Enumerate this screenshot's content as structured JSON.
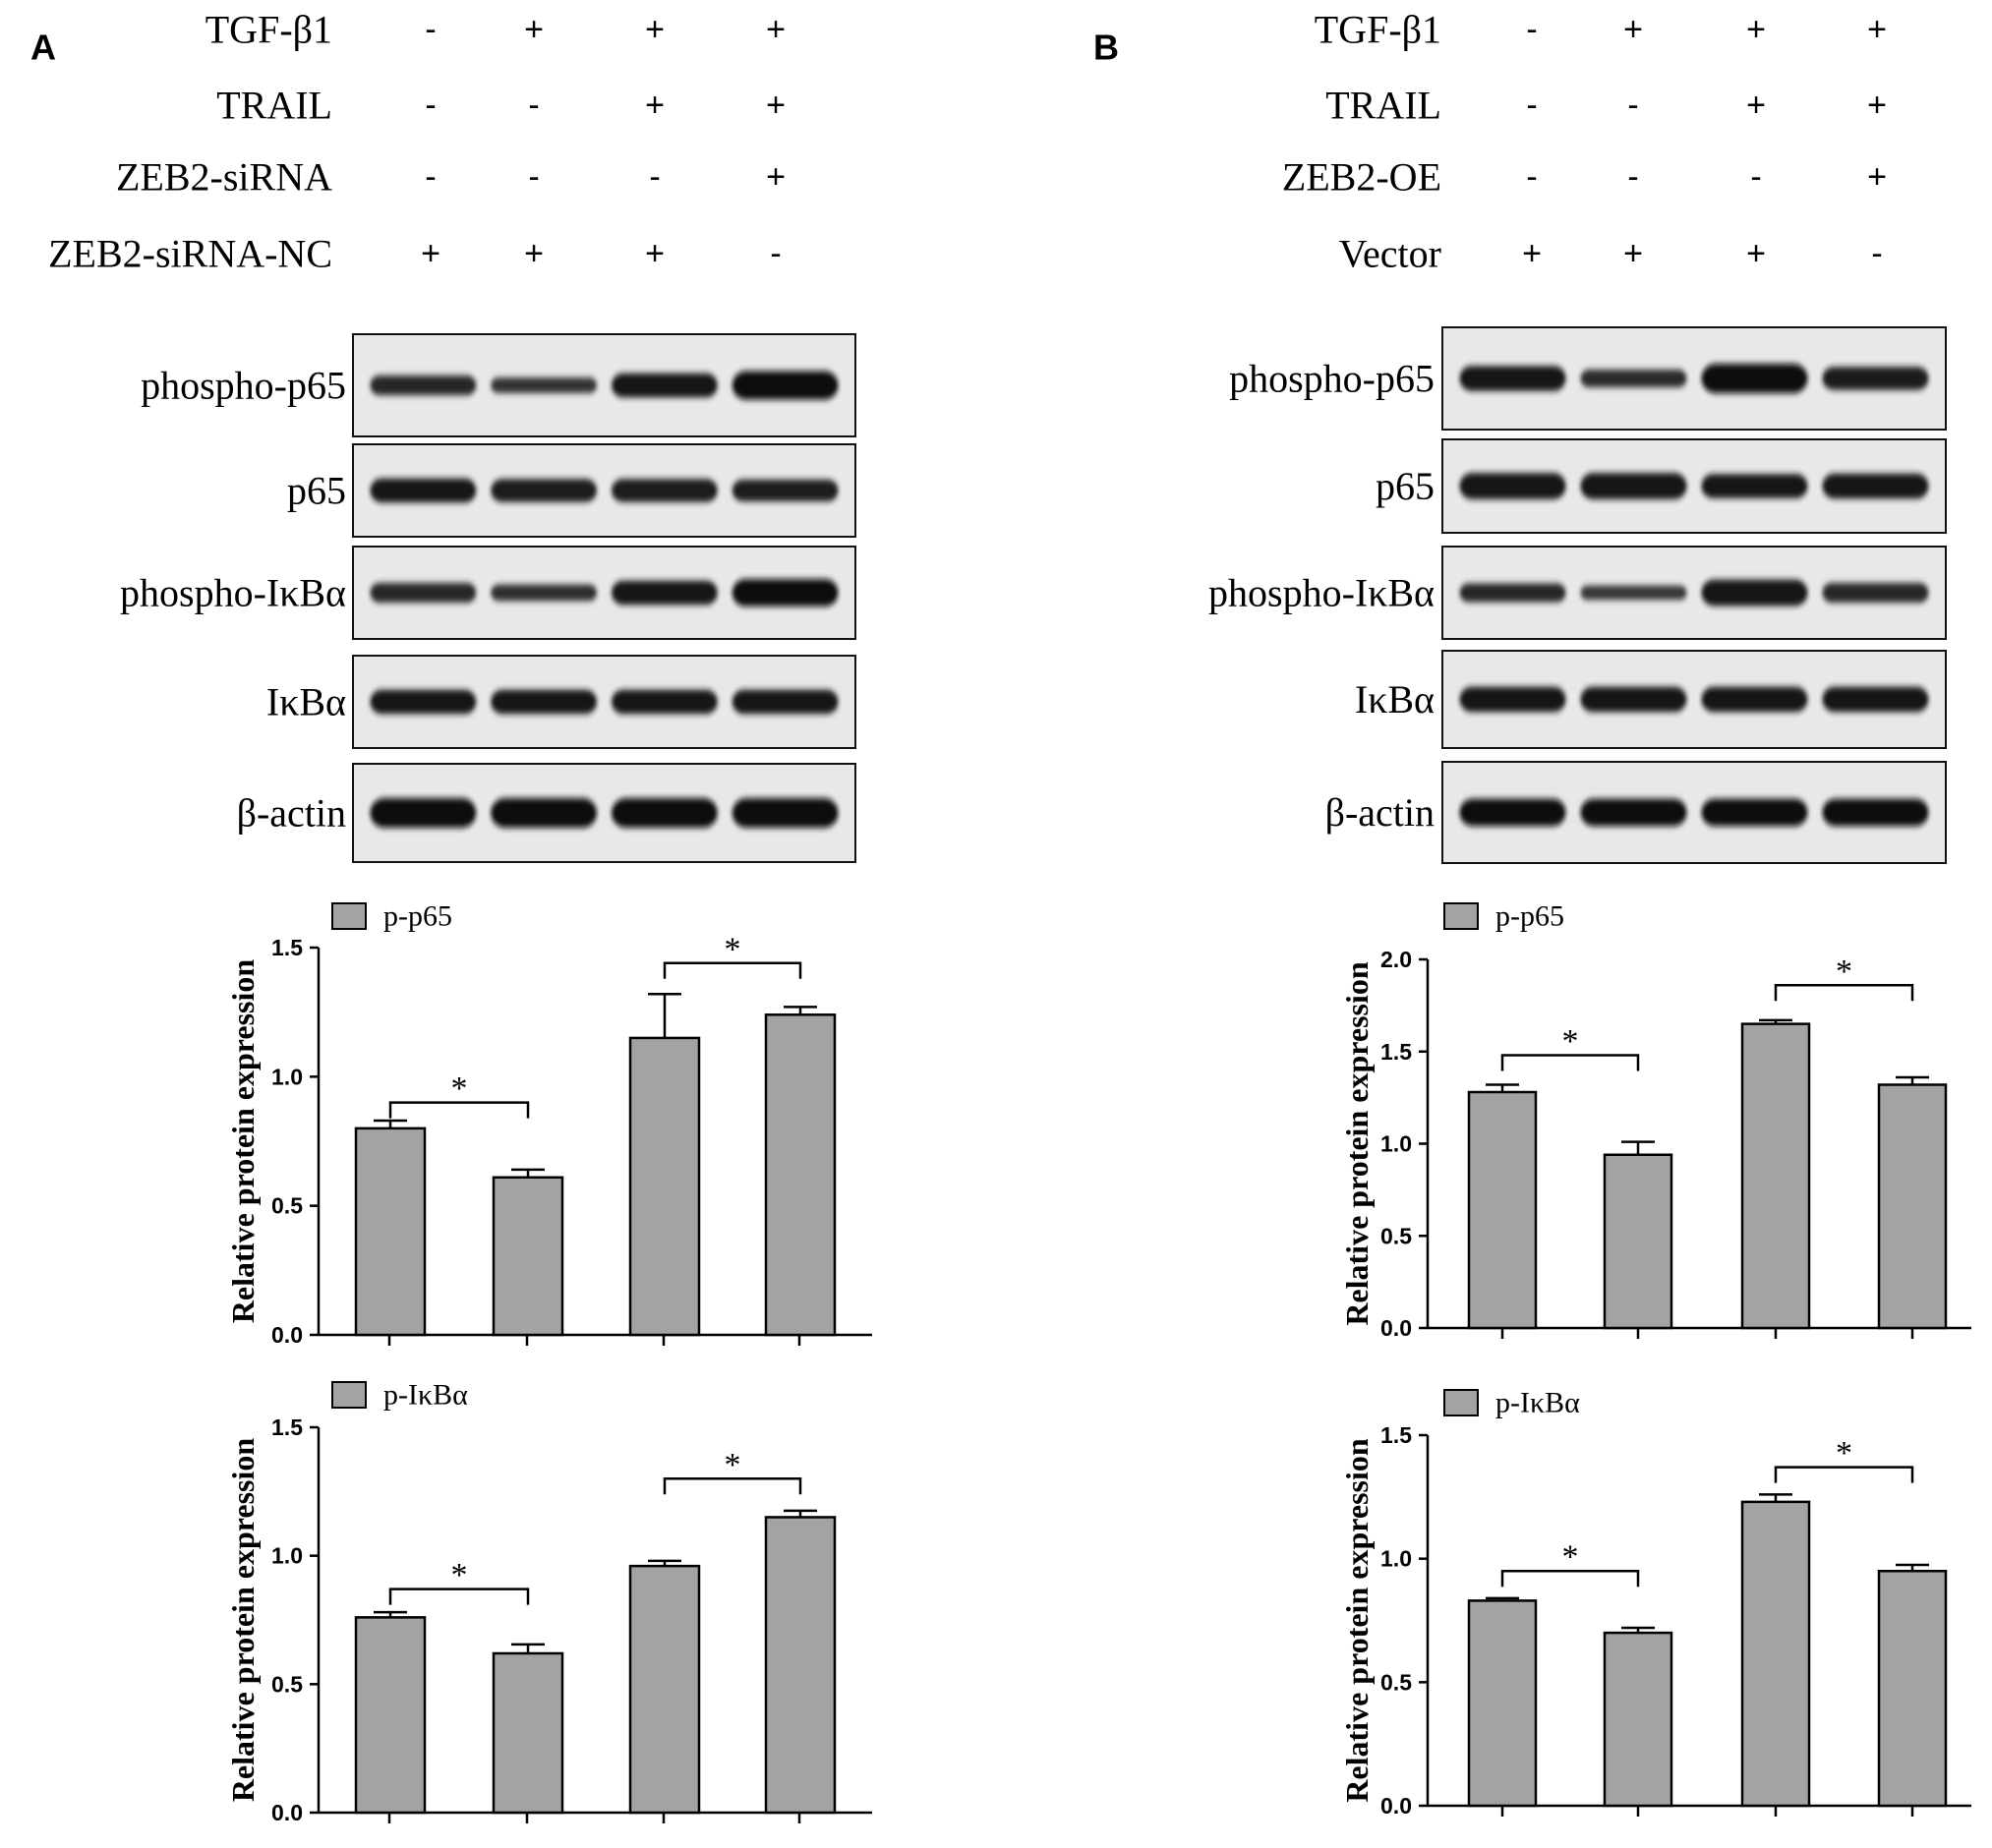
{
  "panels": [
    {
      "letter": "A",
      "treatments": [
        {
          "label": "TGF-β1",
          "signs": [
            "-",
            "+",
            "+",
            "+"
          ]
        },
        {
          "label": "TRAIL",
          "signs": [
            "-",
            "-",
            "+",
            "+"
          ]
        },
        {
          "label": "ZEB2-siRNA",
          "signs": [
            "-",
            "-",
            "-",
            "+"
          ]
        },
        {
          "label": "ZEB2-siRNA-NC",
          "signs": [
            "+",
            "+",
            "+",
            "-"
          ]
        }
      ],
      "blots": [
        {
          "label": "phospho-p65",
          "intensity": [
            0.55,
            0.35,
            0.75,
            0.95
          ]
        },
        {
          "label": "p65",
          "intensity": [
            0.75,
            0.7,
            0.7,
            0.65
          ]
        },
        {
          "label": "phospho-IκBα",
          "intensity": [
            0.55,
            0.4,
            0.75,
            0.9
          ]
        },
        {
          "label": "IκBα",
          "intensity": [
            0.75,
            0.75,
            0.75,
            0.75
          ]
        },
        {
          "label": "β-actin",
          "intensity": [
            1.0,
            1.0,
            1.0,
            1.0
          ]
        }
      ]
    },
    {
      "letter": "B",
      "treatments": [
        {
          "label": "TGF-β1",
          "signs": [
            "-",
            "+",
            "+",
            "+"
          ]
        },
        {
          "label": "TRAIL",
          "signs": [
            "-",
            "-",
            "+",
            "+"
          ]
        },
        {
          "label": "ZEB2-OE",
          "signs": [
            "-",
            "-",
            "-",
            "+"
          ]
        },
        {
          "label": "Vector",
          "signs": [
            "+",
            "+",
            "+",
            "-"
          ]
        }
      ],
      "blots": [
        {
          "label": "phospho-p65",
          "intensity": [
            0.8,
            0.45,
            1.0,
            0.7
          ]
        },
        {
          "label": "p65",
          "intensity": [
            0.85,
            0.85,
            0.75,
            0.8
          ]
        },
        {
          "label": "phospho-IκBα",
          "intensity": [
            0.5,
            0.3,
            0.85,
            0.55
          ]
        },
        {
          "label": "IκBα",
          "intensity": [
            0.8,
            0.8,
            0.8,
            0.8
          ]
        },
        {
          "label": "β-actin",
          "intensity": [
            0.9,
            0.9,
            0.9,
            0.9
          ]
        }
      ]
    }
  ],
  "chart_data": [
    {
      "type": "bar",
      "panel": "A",
      "legend": "p-p65",
      "legend_position": "top-left",
      "ylabel": "Relative protein expression",
      "ylim": [
        0,
        1.5
      ],
      "yticks": [
        "0.0",
        "0.5",
        "1.0",
        "1.5"
      ],
      "values": [
        0.8,
        0.61,
        1.15,
        1.24
      ],
      "errors": [
        0.03,
        0.03,
        0.17,
        0.03
      ],
      "significance": [
        {
          "groups": [
            0,
            1
          ],
          "label": "*",
          "y": 0.9
        },
        {
          "groups": [
            2,
            3
          ],
          "label": "*",
          "y": 1.44
        }
      ]
    },
    {
      "type": "bar",
      "panel": "A",
      "legend": "p-IκBα",
      "legend_position": "top-left",
      "ylabel": "Relative protein expression",
      "ylim": [
        0,
        1.5
      ],
      "yticks": [
        "0.0",
        "0.5",
        "1.0",
        "1.5"
      ],
      "values": [
        0.76,
        0.62,
        0.96,
        1.15
      ],
      "errors": [
        0.02,
        0.035,
        0.02,
        0.025
      ],
      "significance": [
        {
          "groups": [
            0,
            1
          ],
          "label": "*",
          "y": 0.87
        },
        {
          "groups": [
            2,
            3
          ],
          "label": "*",
          "y": 1.3
        }
      ]
    },
    {
      "type": "bar",
      "panel": "B",
      "legend": "p-p65",
      "legend_position": "top-left",
      "ylabel": "Relative protein expression",
      "ylim": [
        0,
        2.0
      ],
      "yticks": [
        "0.0",
        "0.5",
        "1.0",
        "1.5",
        "2.0"
      ],
      "values": [
        1.28,
        0.94,
        1.65,
        1.32
      ],
      "errors": [
        0.04,
        0.07,
        0.02,
        0.04
      ],
      "significance": [
        {
          "groups": [
            0,
            1
          ],
          "label": "*",
          "y": 1.48
        },
        {
          "groups": [
            2,
            3
          ],
          "label": "*",
          "y": 1.86
        }
      ]
    },
    {
      "type": "bar",
      "panel": "B",
      "legend": "p-IκBα",
      "legend_position": "top-left",
      "ylabel": "Relative protein expression",
      "ylim": [
        0,
        1.5
      ],
      "yticks": [
        "0.0",
        "0.5",
        "1.0",
        "1.5"
      ],
      "values": [
        0.83,
        0.7,
        1.23,
        0.95
      ],
      "errors": [
        0.01,
        0.02,
        0.03,
        0.025
      ],
      "significance": [
        {
          "groups": [
            0,
            1
          ],
          "label": "*",
          "y": 0.95
        },
        {
          "groups": [
            2,
            3
          ],
          "label": "*",
          "y": 1.37
        }
      ]
    }
  ],
  "colors": {
    "bar_fill": "#a3a3a3",
    "stroke": "#000000",
    "blot_bg": "#e8e8e8"
  }
}
